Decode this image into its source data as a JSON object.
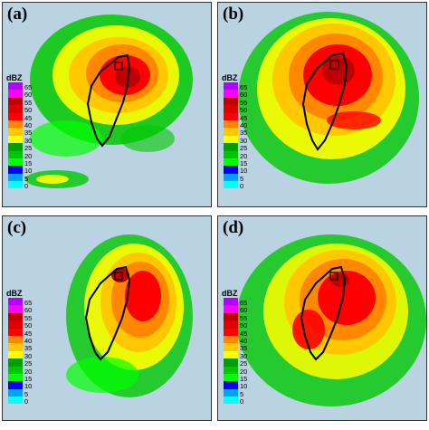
{
  "colorbar": {
    "unit": "dBZ",
    "levels": [
      "65",
      "60",
      "55",
      "50",
      "45",
      "40",
      "35",
      "30",
      "25",
      "20",
      "15",
      "10",
      "5",
      "0"
    ],
    "colors": [
      "#b400ff",
      "#ff00ff",
      "#c00000",
      "#e00000",
      "#ff0000",
      "#ff8800",
      "#ffc800",
      "#ffff00",
      "#00a000",
      "#00c800",
      "#00ff00",
      "#0000ff",
      "#00a0ff",
      "#00ffff"
    ]
  },
  "panels": [
    {
      "label": "(a)",
      "intensity": 0.7
    },
    {
      "label": "(b)",
      "intensity": 0.85
    },
    {
      "label": "(c)",
      "intensity": 0.75
    },
    {
      "label": "(d)",
      "intensity": 0.95
    }
  ],
  "colors": {
    "background": "#b9d3e3",
    "outline": "#000000"
  }
}
